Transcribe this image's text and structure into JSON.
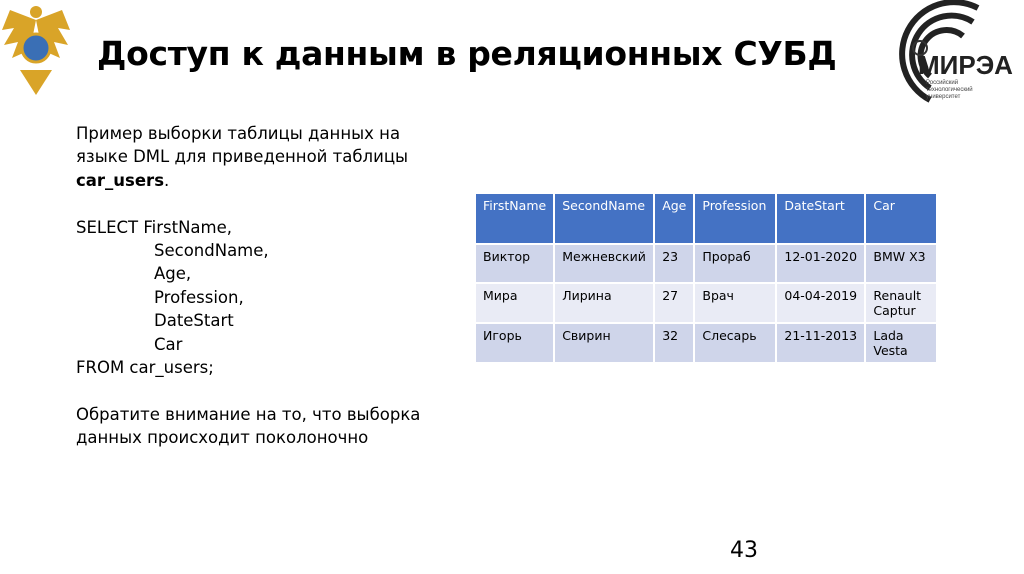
{
  "title": "Доступ к данным в реляционных СУБД",
  "logo": {
    "name": "МИРЭА",
    "subtitle": "Российский технологический университет"
  },
  "intro": {
    "line1": "Пример выборки таблицы данных на",
    "line2": "языке DML для приведенной таблицы",
    "table_name": "car_users",
    "dot": "."
  },
  "sql": [
    "SELECT FirstName,",
    "SecondName,",
    "Age,",
    "Profession,",
    "DateStart",
    "Car",
    "FROM car_users;"
  ],
  "note": [
    "Обратите внимание на то, что выборка",
    "данных происходит поколоночно"
  ],
  "table": {
    "headers": [
      "FirstName",
      "SecondName",
      "Age",
      "Profession",
      "DateStart",
      "Car"
    ],
    "rows": [
      [
        "Виктор",
        "Межневский",
        "23",
        "Прораб",
        "12-01-2020",
        "BMW X3"
      ],
      [
        "Мира",
        "Лирина",
        "27",
        "Врач",
        "04-04-2019",
        "Renault Captur"
      ],
      [
        "Игорь",
        "Свирин",
        "32",
        "Слесарь",
        "21-11-2013",
        "Lada Vesta"
      ]
    ]
  },
  "page_number": "43",
  "colors": {
    "header": "#4472c4",
    "row_dark": "#cfd5ea",
    "row_light": "#e9ebf5"
  }
}
